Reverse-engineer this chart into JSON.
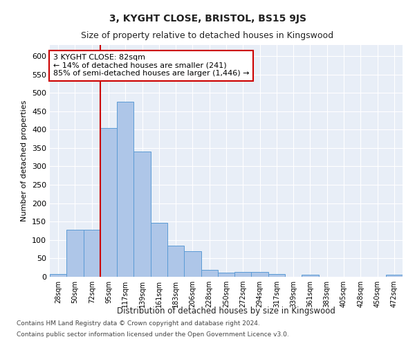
{
  "title": "3, KYGHT CLOSE, BRISTOL, BS15 9JS",
  "subtitle": "Size of property relative to detached houses in Kingswood",
  "xlabel": "Distribution of detached houses by size in Kingswood",
  "ylabel": "Number of detached properties",
  "footnote1": "Contains HM Land Registry data © Crown copyright and database right 2024.",
  "footnote2": "Contains public sector information licensed under the Open Government Licence v3.0.",
  "bar_labels": [
    "28sqm",
    "50sqm",
    "72sqm",
    "95sqm",
    "117sqm",
    "139sqm",
    "161sqm",
    "183sqm",
    "206sqm",
    "228sqm",
    "250sqm",
    "272sqm",
    "294sqm",
    "317sqm",
    "339sqm",
    "361sqm",
    "383sqm",
    "405sqm",
    "428sqm",
    "450sqm",
    "472sqm"
  ],
  "bar_values": [
    8,
    127,
    127,
    405,
    475,
    340,
    147,
    85,
    70,
    18,
    11,
    14,
    14,
    7,
    0,
    5,
    0,
    0,
    0,
    0,
    5
  ],
  "bar_color": "#aec6e8",
  "bar_edge_color": "#5b9bd5",
  "bg_color": "#e8eef7",
  "grid_color": "#ffffff",
  "vline_x": 2.5,
  "vline_color": "#cc0000",
  "annotation_line1": "3 KYGHT CLOSE: 82sqm",
  "annotation_line2": "← 14% of detached houses are smaller (241)",
  "annotation_line3": "85% of semi-detached houses are larger (1,446) →",
  "annotation_box_color": "#cc0000",
  "ylim": [
    0,
    630
  ],
  "yticks": [
    0,
    50,
    100,
    150,
    200,
    250,
    300,
    350,
    400,
    450,
    500,
    550,
    600
  ],
  "title_fontsize": 10,
  "subtitle_fontsize": 9
}
